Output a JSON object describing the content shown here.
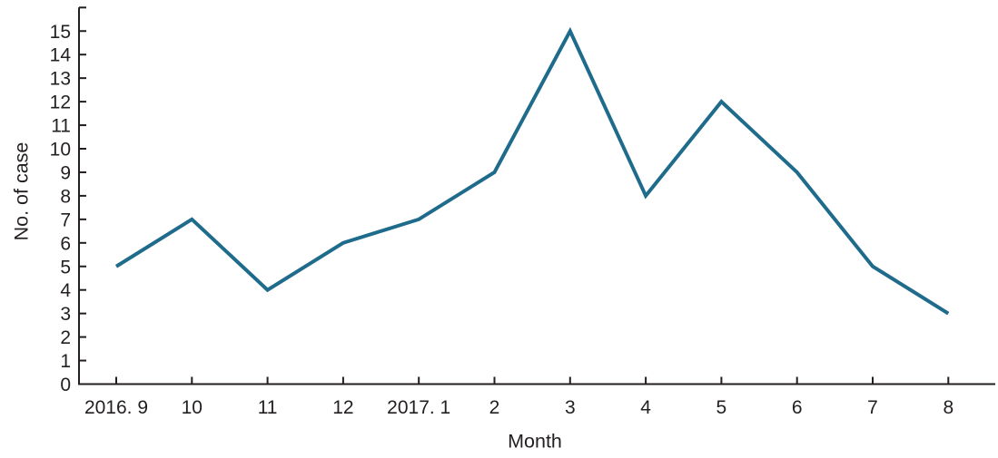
{
  "figure": {
    "background": "#ffffff"
  },
  "chart_data": {
    "type": "line",
    "xlabel": "Month",
    "ylabel": "No. of case",
    "categories": [
      "2016. 9",
      "10",
      "11",
      "12",
      "2017. 1",
      "2",
      "3",
      "4",
      "5",
      "6",
      "7",
      "8"
    ],
    "values": [
      5,
      7,
      4,
      6,
      7,
      9,
      15,
      8,
      12,
      9,
      5,
      3
    ],
    "ylim": [
      0,
      16
    ],
    "yticks": [
      0,
      1,
      2,
      3,
      4,
      5,
      6,
      7,
      8,
      9,
      10,
      11,
      12,
      13,
      14,
      15
    ],
    "grid": false,
    "legend": "none",
    "markers": "none",
    "tick_direction": "in",
    "line_color": "#1f6b8c",
    "axis_color": "#231f20",
    "text_color": "#231f20"
  }
}
